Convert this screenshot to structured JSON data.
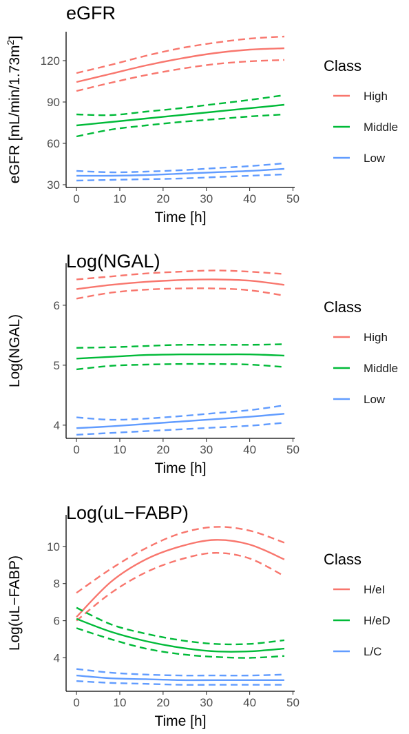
{
  "chart_data": [
    {
      "type": "line",
      "title": "eGFR",
      "xlabel": "Time [h]",
      "ylabel": "eGFR [mL/min/1.73m",
      "ylabel_sup": "2",
      "ylabel_end": "]",
      "xlim": [
        -2.4,
        50.4
      ],
      "ylim": [
        28,
        141
      ],
      "xticks": [
        0,
        10,
        20,
        30,
        40,
        50
      ],
      "yticks": [
        30,
        60,
        90,
        120
      ],
      "x": [
        0,
        8,
        16,
        24,
        32,
        40,
        48
      ],
      "legend": {
        "title": "Class",
        "position": "right"
      },
      "series": [
        {
          "name": "High",
          "color": "#F8766D",
          "mean": [
            104.5,
            110.5,
            116.5,
            121.5,
            125.5,
            128,
            129
          ],
          "lower": [
            98,
            104,
            109.5,
            114,
            117.5,
            119.5,
            120.5
          ],
          "upper": [
            111,
            117,
            123.5,
            129,
            133,
            136,
            137.5
          ]
        },
        {
          "name": "Middle",
          "color": "#00BA38",
          "mean": [
            73,
            75.5,
            78,
            80.5,
            83,
            85.5,
            88
          ],
          "lower": [
            65,
            70,
            73,
            75.5,
            77.5,
            79.5,
            81
          ],
          "upper": [
            81,
            80.5,
            83,
            85.5,
            88.5,
            91.5,
            95
          ]
        },
        {
          "name": "Low",
          "color": "#619CFF",
          "mean": [
            36.5,
            36.5,
            37,
            38,
            39,
            40,
            41.5
          ],
          "lower": [
            33,
            33.5,
            34,
            34.5,
            35.5,
            36.5,
            37.5
          ],
          "upper": [
            40,
            39,
            39.5,
            40.5,
            42,
            43.5,
            45.5
          ]
        }
      ]
    },
    {
      "type": "line",
      "title": "Log(NGAL)",
      "xlabel": "Time [h]",
      "ylabel": "Log(NGAL)",
      "xlim": [
        -2.4,
        50.4
      ],
      "ylim": [
        3.78,
        6.7
      ],
      "xticks": [
        0,
        10,
        20,
        30,
        40,
        50
      ],
      "yticks": [
        4,
        5,
        6
      ],
      "x": [
        0,
        8,
        16,
        24,
        32,
        40,
        48
      ],
      "legend": {
        "title": "Class",
        "position": "right"
      },
      "series": [
        {
          "name": "High",
          "color": "#F8766D",
          "mean": [
            6.27,
            6.34,
            6.39,
            6.42,
            6.43,
            6.41,
            6.34
          ],
          "lower": [
            6.11,
            6.21,
            6.26,
            6.28,
            6.28,
            6.25,
            6.16
          ],
          "upper": [
            6.43,
            6.48,
            6.53,
            6.56,
            6.58,
            6.56,
            6.52
          ]
        },
        {
          "name": "Middle",
          "color": "#00BA38",
          "mean": [
            5.11,
            5.14,
            5.17,
            5.18,
            5.18,
            5.18,
            5.16
          ],
          "lower": [
            4.93,
            4.99,
            5.01,
            5.02,
            5.02,
            5.01,
            4.97
          ],
          "upper": [
            5.29,
            5.3,
            5.32,
            5.34,
            5.34,
            5.34,
            5.35
          ]
        },
        {
          "name": "Low",
          "color": "#619CFF",
          "mean": [
            3.95,
            3.98,
            4.02,
            4.06,
            4.1,
            4.14,
            4.19
          ],
          "lower": [
            3.84,
            3.87,
            3.9,
            3.93,
            3.96,
            3.99,
            4.04
          ],
          "upper": [
            4.13,
            4.09,
            4.11,
            4.15,
            4.2,
            4.25,
            4.33
          ]
        }
      ]
    },
    {
      "type": "line",
      "title": "Log(uL−FABP)",
      "xlabel": "Time [h]",
      "ylabel": "Log(uL−FABP)",
      "xlim": [
        -2.4,
        50.4
      ],
      "ylim": [
        2.2,
        11.7
      ],
      "xticks": [
        0,
        10,
        20,
        30,
        40,
        50
      ],
      "yticks": [
        4,
        6,
        8,
        10
      ],
      "x": [
        0,
        8,
        16,
        24,
        32,
        40,
        48
      ],
      "legend": {
        "title": "Class",
        "position": "right"
      },
      "series": [
        {
          "name": "H/eI",
          "color": "#F8766D",
          "mean": [
            6.2,
            8.1,
            9.3,
            10.0,
            10.35,
            10.1,
            9.3
          ],
          "lower": [
            6.0,
            7.5,
            8.6,
            9.3,
            9.65,
            9.35,
            8.4
          ],
          "upper": [
            7.5,
            8.8,
            9.9,
            10.7,
            11.05,
            10.85,
            10.2
          ]
        },
        {
          "name": "H/eD",
          "color": "#00BA38",
          "mean": [
            6.1,
            5.4,
            4.9,
            4.55,
            4.35,
            4.35,
            4.5
          ],
          "lower": [
            5.6,
            5.0,
            4.5,
            4.2,
            4.05,
            4.0,
            4.1
          ],
          "upper": [
            6.7,
            5.8,
            5.3,
            4.95,
            4.75,
            4.75,
            4.95
          ]
        },
        {
          "name": "L/C",
          "color": "#619CFF",
          "mean": [
            3.05,
            2.9,
            2.85,
            2.8,
            2.8,
            2.8,
            2.8
          ],
          "lower": [
            2.75,
            2.65,
            2.6,
            2.55,
            2.55,
            2.55,
            2.55
          ],
          "upper": [
            3.4,
            3.2,
            3.1,
            3.05,
            3.05,
            3.05,
            3.1
          ]
        }
      ]
    }
  ]
}
